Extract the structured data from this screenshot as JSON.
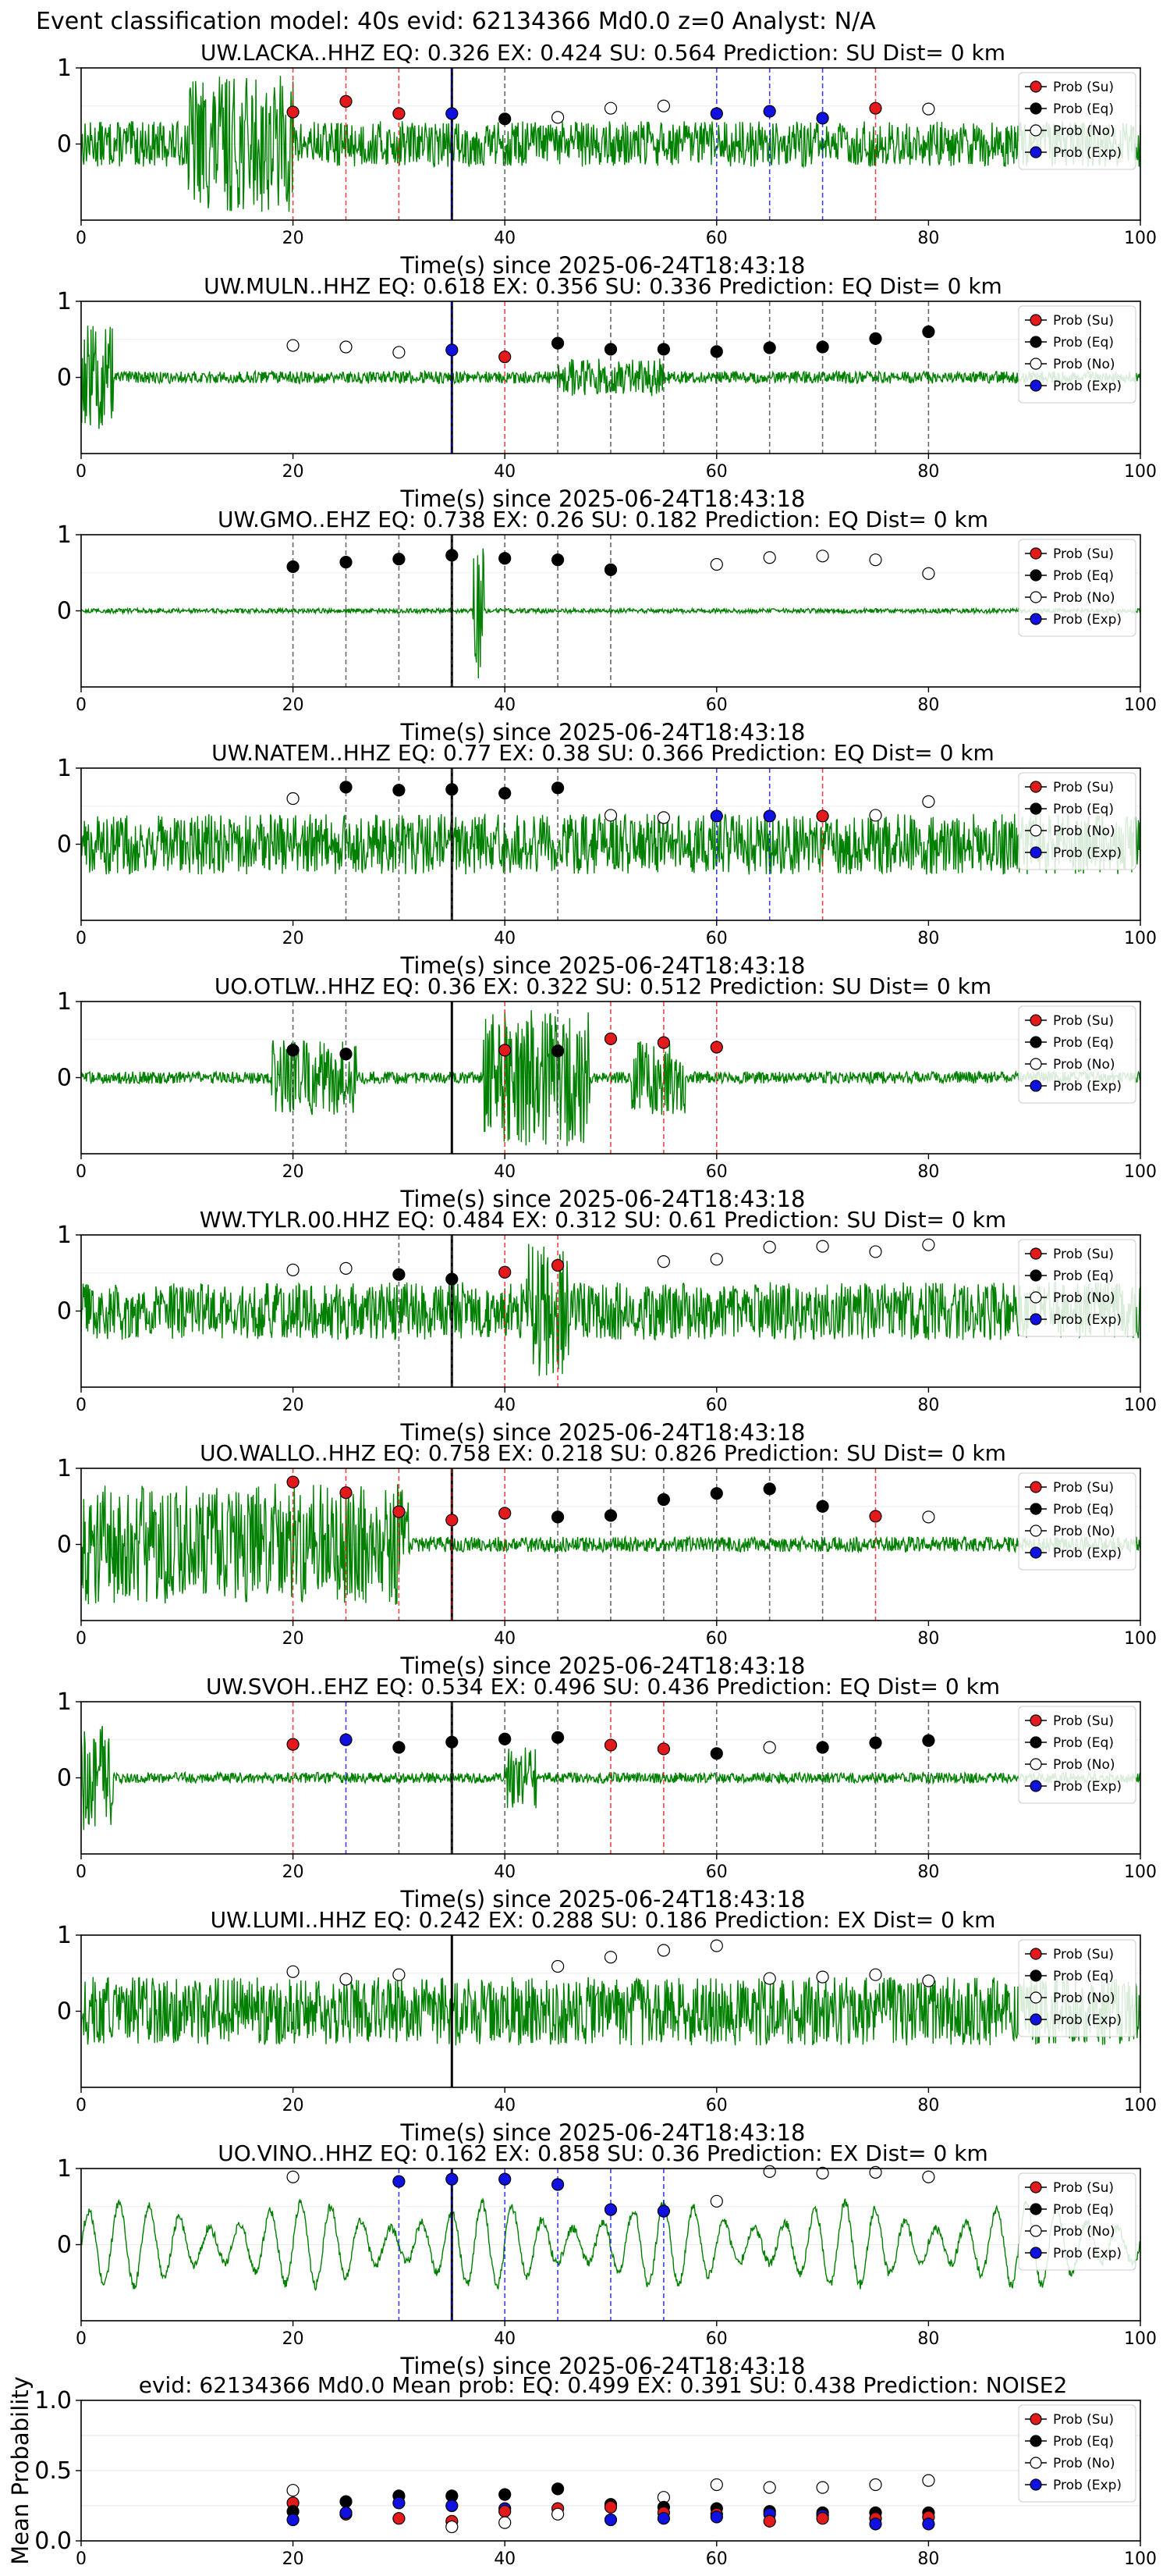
{
  "figure": {
    "suptitle": "Event classification model: 40s evid: 62134366 Md0.0 z=0 Analyst: N/A"
  },
  "legend": {
    "entries": [
      {
        "label": "Prob (Su)",
        "face": "#e31a1c",
        "edge": "#000000"
      },
      {
        "label": "Prob (Eq)",
        "face": "#000000",
        "edge": "#000000"
      },
      {
        "label": "Prob (No)",
        "face": "#ffffff",
        "edge": "#000000"
      },
      {
        "label": "Prob (Exp)",
        "face": "#1010e0",
        "edge": "#000000"
      }
    ],
    "placement": "top-right"
  },
  "colors": {
    "waveform": "#008000",
    "su": "#e31a1c",
    "eq": "#000000",
    "no": "#ffffff",
    "exp": "#1010e0",
    "marker_line": "#000000"
  },
  "chart_data": [
    {
      "type": "scatter",
      "title": "UW.LACKA..HHZ   EQ: 0.326  EX: 0.424  SU: 0.564   Prediction: SU    Dist= 0 km",
      "xlabel": "Time(s) since 2025-06-24T18:43:18",
      "xlim": [
        0,
        100
      ],
      "ylim": [
        -1,
        1
      ],
      "xticks": [
        0,
        20,
        40,
        60,
        80,
        100
      ],
      "yticks": [
        1,
        0
      ],
      "pick_time": 35,
      "waveform": {
        "amp": 0.3,
        "style": "noise",
        "bursts": [
          [
            10,
            20,
            0.9
          ]
        ]
      },
      "points": [
        [
          20,
          "su",
          0.42
        ],
        [
          25,
          "su",
          0.56
        ],
        [
          30,
          "su",
          0.4
        ],
        [
          35,
          "exp",
          0.4
        ],
        [
          40,
          "eq",
          0.33
        ],
        [
          45,
          "no",
          0.35
        ],
        [
          50,
          "no",
          0.47
        ],
        [
          55,
          "no",
          0.5
        ],
        [
          60,
          "exp",
          0.4
        ],
        [
          65,
          "exp",
          0.43
        ],
        [
          70,
          "exp",
          0.34
        ],
        [
          75,
          "su",
          0.47
        ],
        [
          80,
          "no",
          0.46
        ]
      ]
    },
    {
      "type": "scatter",
      "title": "UW.MULN..HHZ   EQ: 0.618  EX: 0.356  SU: 0.336   Prediction: EQ    Dist= 0 km",
      "xlabel": "Time(s) since 2025-06-24T18:43:18",
      "xlim": [
        0,
        100
      ],
      "ylim": [
        -1,
        1
      ],
      "xticks": [
        0,
        20,
        40,
        60,
        80,
        100
      ],
      "yticks": [
        1,
        0
      ],
      "pick_time": 35,
      "waveform": {
        "amp": 0.08,
        "style": "noise",
        "bursts": [
          [
            0,
            3,
            0.7
          ],
          [
            45,
            55,
            0.25
          ]
        ]
      },
      "points": [
        [
          20,
          "no",
          0.42
        ],
        [
          25,
          "no",
          0.4
        ],
        [
          30,
          "no",
          0.33
        ],
        [
          35,
          "exp",
          0.36
        ],
        [
          40,
          "su",
          0.27
        ],
        [
          45,
          "eq",
          0.45
        ],
        [
          50,
          "eq",
          0.37
        ],
        [
          55,
          "eq",
          0.37
        ],
        [
          60,
          "eq",
          0.34
        ],
        [
          65,
          "eq",
          0.39
        ],
        [
          70,
          "eq",
          0.4
        ],
        [
          75,
          "eq",
          0.51
        ],
        [
          80,
          "eq",
          0.6
        ]
      ]
    },
    {
      "type": "scatter",
      "title": "UW.GMO..EHZ   EQ: 0.738  EX: 0.26  SU: 0.182   Prediction: EQ    Dist= 0 km",
      "xlabel": "Time(s) since 2025-06-24T18:43:18",
      "xlim": [
        0,
        100
      ],
      "ylim": [
        -1,
        1
      ],
      "xticks": [
        0,
        20,
        40,
        60,
        80,
        100
      ],
      "yticks": [
        1,
        0
      ],
      "pick_time": 35,
      "waveform": {
        "amp": 0.03,
        "style": "noise",
        "bursts": [
          [
            37,
            38,
            0.9
          ]
        ]
      },
      "points": [
        [
          20,
          "eq",
          0.58
        ],
        [
          25,
          "eq",
          0.64
        ],
        [
          30,
          "eq",
          0.68
        ],
        [
          35,
          "eq",
          0.73
        ],
        [
          40,
          "eq",
          0.69
        ],
        [
          45,
          "eq",
          0.67
        ],
        [
          50,
          "eq",
          0.54
        ],
        [
          60,
          "no",
          0.61
        ],
        [
          65,
          "no",
          0.7
        ],
        [
          70,
          "no",
          0.72
        ],
        [
          75,
          "no",
          0.67
        ],
        [
          80,
          "no",
          0.49
        ]
      ]
    },
    {
      "type": "scatter",
      "title": "UW.NATEM..HHZ   EQ: 0.77  EX: 0.38  SU: 0.366   Prediction: EQ    Dist= 0 km",
      "xlabel": "Time(s) since 2025-06-24T18:43:18",
      "xlim": [
        0,
        100
      ],
      "ylim": [
        -1,
        1
      ],
      "xticks": [
        0,
        20,
        40,
        60,
        80,
        100
      ],
      "yticks": [
        1,
        0
      ],
      "pick_time": 35,
      "waveform": {
        "amp": 0.4,
        "style": "noise",
        "bursts": []
      },
      "points": [
        [
          20,
          "no",
          0.6
        ],
        [
          25,
          "eq",
          0.75
        ],
        [
          30,
          "eq",
          0.71
        ],
        [
          35,
          "eq",
          0.72
        ],
        [
          40,
          "eq",
          0.67
        ],
        [
          45,
          "eq",
          0.74
        ],
        [
          50,
          "no",
          0.38
        ],
        [
          55,
          "no",
          0.35
        ],
        [
          60,
          "exp",
          0.37
        ],
        [
          65,
          "exp",
          0.37
        ],
        [
          70,
          "su",
          0.37
        ],
        [
          75,
          "no",
          0.38
        ],
        [
          80,
          "no",
          0.56
        ]
      ]
    },
    {
      "type": "scatter",
      "title": "UO.OTLW..HHZ   EQ: 0.36  EX: 0.322  SU: 0.512   Prediction: SU    Dist= 0 km",
      "xlabel": "Time(s) since 2025-06-24T18:43:18",
      "xlim": [
        0,
        100
      ],
      "ylim": [
        -1,
        1
      ],
      "xticks": [
        0,
        20,
        40,
        60,
        80,
        100
      ],
      "yticks": [
        1,
        0
      ],
      "pick_time": 35,
      "waveform": {
        "amp": 0.08,
        "style": "noise",
        "bursts": [
          [
            18,
            26,
            0.5
          ],
          [
            38,
            48,
            0.9
          ],
          [
            52,
            57,
            0.5
          ]
        ]
      },
      "points": [
        [
          20,
          "eq",
          0.36
        ],
        [
          25,
          "eq",
          0.31
        ],
        [
          40,
          "su",
          0.36
        ],
        [
          45,
          "eq",
          0.35
        ],
        [
          50,
          "su",
          0.51
        ],
        [
          55,
          "su",
          0.46
        ],
        [
          60,
          "su",
          0.4
        ]
      ]
    },
    {
      "type": "scatter",
      "title": "WW.TYLR.00.HHZ   EQ: 0.484  EX: 0.312  SU: 0.61   Prediction: SU    Dist= 0 km",
      "xlabel": "Time(s) since 2025-06-24T18:43:18",
      "xlim": [
        0,
        100
      ],
      "ylim": [
        -1,
        1
      ],
      "xticks": [
        0,
        20,
        40,
        60,
        80,
        100
      ],
      "yticks": [
        1,
        0
      ],
      "pick_time": 35,
      "waveform": {
        "amp": 0.38,
        "style": "noise",
        "bursts": [
          [
            42,
            46,
            0.9
          ]
        ]
      },
      "points": [
        [
          20,
          "no",
          0.54
        ],
        [
          25,
          "no",
          0.56
        ],
        [
          30,
          "eq",
          0.48
        ],
        [
          35,
          "eq",
          0.42
        ],
        [
          40,
          "su",
          0.51
        ],
        [
          45,
          "su",
          0.6
        ],
        [
          55,
          "no",
          0.65
        ],
        [
          60,
          "no",
          0.68
        ],
        [
          65,
          "no",
          0.84
        ],
        [
          70,
          "no",
          0.85
        ],
        [
          75,
          "no",
          0.78
        ],
        [
          80,
          "no",
          0.87
        ]
      ]
    },
    {
      "type": "scatter",
      "title": "UO.WALLO..HHZ   EQ: 0.758  EX: 0.218  SU: 0.826   Prediction: SU    Dist= 0 km",
      "xlabel": "Time(s) since 2025-06-24T18:43:18",
      "xlim": [
        0,
        100
      ],
      "ylim": [
        -1,
        1
      ],
      "xticks": [
        0,
        20,
        40,
        60,
        80,
        100
      ],
      "yticks": [
        1,
        0
      ],
      "pick_time": 35,
      "waveform": {
        "amp": 0.1,
        "style": "noise",
        "bursts": [
          [
            0,
            31,
            0.8
          ]
        ]
      },
      "points": [
        [
          20,
          "su",
          0.82
        ],
        [
          25,
          "su",
          0.68
        ],
        [
          30,
          "su",
          0.43
        ],
        [
          35,
          "su",
          0.32
        ],
        [
          40,
          "su",
          0.41
        ],
        [
          45,
          "eq",
          0.36
        ],
        [
          50,
          "eq",
          0.38
        ],
        [
          55,
          "eq",
          0.59
        ],
        [
          60,
          "eq",
          0.67
        ],
        [
          65,
          "eq",
          0.73
        ],
        [
          70,
          "eq",
          0.5
        ],
        [
          75,
          "su",
          0.37
        ],
        [
          80,
          "no",
          0.36
        ]
      ]
    },
    {
      "type": "scatter",
      "title": "UW.SVOH..EHZ   EQ: 0.534  EX: 0.496  SU: 0.436   Prediction: EQ    Dist= 0 km",
      "xlabel": "Time(s) since 2025-06-24T18:43:18",
      "xlim": [
        0,
        100
      ],
      "ylim": [
        -1,
        1
      ],
      "xticks": [
        0,
        20,
        40,
        60,
        80,
        100
      ],
      "yticks": [
        1,
        0
      ],
      "pick_time": 35,
      "waveform": {
        "amp": 0.07,
        "style": "noise",
        "bursts": [
          [
            0,
            3,
            0.7
          ],
          [
            40,
            43,
            0.4
          ]
        ]
      },
      "points": [
        [
          20,
          "su",
          0.44
        ],
        [
          25,
          "exp",
          0.5
        ],
        [
          30,
          "eq",
          0.4
        ],
        [
          35,
          "eq",
          0.47
        ],
        [
          40,
          "eq",
          0.51
        ],
        [
          45,
          "eq",
          0.53
        ],
        [
          50,
          "su",
          0.43
        ],
        [
          55,
          "su",
          0.38
        ],
        [
          60,
          "eq",
          0.32
        ],
        [
          65,
          "no",
          0.4
        ],
        [
          70,
          "eq",
          0.4
        ],
        [
          75,
          "eq",
          0.46
        ],
        [
          80,
          "eq",
          0.49
        ]
      ]
    },
    {
      "type": "scatter",
      "title": "UW.LUMI..HHZ   EQ: 0.242  EX: 0.288  SU: 0.186   Prediction: EX    Dist= 0 km",
      "xlabel": "Time(s) since 2025-06-24T18:43:18",
      "xlim": [
        0,
        100
      ],
      "ylim": [
        -1,
        1
      ],
      "xticks": [
        0,
        20,
        40,
        60,
        80,
        100
      ],
      "yticks": [
        1,
        0
      ],
      "pick_time": 35,
      "waveform": {
        "amp": 0.45,
        "style": "noise",
        "bursts": []
      },
      "points": [
        [
          20,
          "no",
          0.52
        ],
        [
          25,
          "no",
          0.42
        ],
        [
          30,
          "no",
          0.48
        ],
        [
          45,
          "no",
          0.59
        ],
        [
          50,
          "no",
          0.71
        ],
        [
          55,
          "no",
          0.8
        ],
        [
          60,
          "no",
          0.86
        ],
        [
          65,
          "no",
          0.43
        ],
        [
          70,
          "no",
          0.45
        ],
        [
          75,
          "no",
          0.48
        ],
        [
          80,
          "no",
          0.4
        ]
      ]
    },
    {
      "type": "scatter",
      "title": "UO.VINO..HHZ   EQ: 0.162  EX: 0.858  SU: 0.36   Prediction: EX    Dist= 0 km",
      "xlabel": "Time(s) since 2025-06-24T18:43:18",
      "xlim": [
        0,
        100
      ],
      "ylim": [
        -1,
        1
      ],
      "xticks": [
        0,
        20,
        40,
        60,
        80,
        100
      ],
      "yticks": [
        1,
        0
      ],
      "pick_time": 35,
      "waveform": {
        "amp": 0.55,
        "style": "wave",
        "bursts": []
      },
      "points": [
        [
          20,
          "no",
          0.89
        ],
        [
          30,
          "exp",
          0.83
        ],
        [
          35,
          "exp",
          0.86
        ],
        [
          40,
          "exp",
          0.86
        ],
        [
          45,
          "exp",
          0.79
        ],
        [
          50,
          "exp",
          0.46
        ],
        [
          55,
          "exp",
          0.44
        ],
        [
          60,
          "no",
          0.57
        ],
        [
          65,
          "no",
          0.96
        ],
        [
          70,
          "no",
          0.94
        ],
        [
          75,
          "no",
          0.95
        ],
        [
          80,
          "no",
          0.89
        ]
      ]
    },
    {
      "type": "scatter",
      "title": "evid: 62134366  Md0.0   Mean prob:   EQ: 0.499  EX: 0.391  SU: 0.438   Prediction: NOISE2",
      "ylabel": "Mean Probability",
      "xlim": [
        0,
        100
      ],
      "ylim": [
        0,
        1
      ],
      "xticks": [
        0,
        20,
        40,
        60,
        80,
        100
      ],
      "yticks": [
        0.0,
        0.5,
        1.0
      ],
      "ytick_labels": [
        "0.0",
        "0.5",
        "1.0"
      ],
      "grid": "horizontal",
      "points": [
        [
          20,
          "no",
          0.36
        ],
        [
          20,
          "su",
          0.27
        ],
        [
          20,
          "eq",
          0.21
        ],
        [
          20,
          "exp",
          0.15
        ],
        [
          25,
          "eq",
          0.28
        ],
        [
          25,
          "su",
          0.19
        ],
        [
          25,
          "exp",
          0.2
        ],
        [
          30,
          "eq",
          0.32
        ],
        [
          30,
          "exp",
          0.27
        ],
        [
          30,
          "su",
          0.16
        ],
        [
          35,
          "eq",
          0.32
        ],
        [
          35,
          "exp",
          0.25
        ],
        [
          35,
          "su",
          0.14
        ],
        [
          35,
          "no",
          0.1
        ],
        [
          40,
          "eq",
          0.33
        ],
        [
          40,
          "exp",
          0.23
        ],
        [
          40,
          "su",
          0.21
        ],
        [
          40,
          "no",
          0.13
        ],
        [
          45,
          "eq",
          0.37
        ],
        [
          45,
          "su",
          0.23
        ],
        [
          45,
          "no",
          0.19
        ],
        [
          50,
          "eq",
          0.26
        ],
        [
          50,
          "su",
          0.24
        ],
        [
          50,
          "exp",
          0.15
        ],
        [
          55,
          "no",
          0.31
        ],
        [
          55,
          "eq",
          0.24
        ],
        [
          55,
          "su",
          0.2
        ],
        [
          55,
          "exp",
          0.16
        ],
        [
          60,
          "no",
          0.4
        ],
        [
          60,
          "eq",
          0.23
        ],
        [
          60,
          "su",
          0.19
        ],
        [
          60,
          "exp",
          0.17
        ],
        [
          65,
          "no",
          0.38
        ],
        [
          65,
          "eq",
          0.21
        ],
        [
          65,
          "exp",
          0.19
        ],
        [
          65,
          "su",
          0.14
        ],
        [
          70,
          "no",
          0.38
        ],
        [
          70,
          "eq",
          0.2
        ],
        [
          70,
          "exp",
          0.18
        ],
        [
          70,
          "su",
          0.16
        ],
        [
          75,
          "no",
          0.4
        ],
        [
          75,
          "eq",
          0.2
        ],
        [
          75,
          "su",
          0.16
        ],
        [
          75,
          "exp",
          0.12
        ],
        [
          80,
          "no",
          0.43
        ],
        [
          80,
          "eq",
          0.2
        ],
        [
          80,
          "su",
          0.17
        ],
        [
          80,
          "exp",
          0.12
        ]
      ]
    }
  ]
}
